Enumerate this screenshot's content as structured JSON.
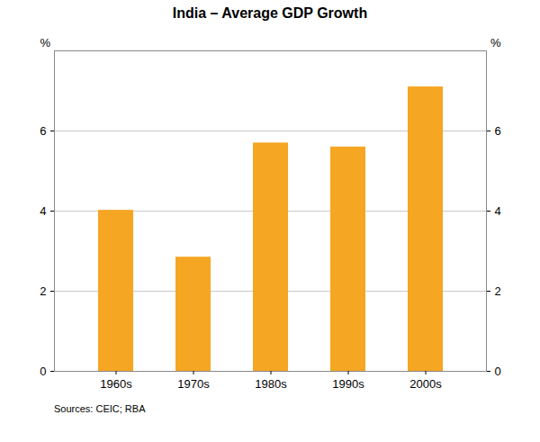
{
  "chart_data": {
    "type": "bar",
    "title": "India – Average GDP Growth",
    "categories": [
      "1960s",
      "1970s",
      "1980s",
      "1990s",
      "2000s"
    ],
    "values": [
      4.02,
      2.85,
      5.7,
      5.6,
      7.1
    ],
    "color": "#F5A623",
    "ylim": [
      0,
      8
    ],
    "yticks": [
      0,
      2,
      4,
      6
    ],
    "ylabel": "%",
    "y2lim": [
      0,
      8
    ],
    "y2ticks": [
      0,
      2,
      4,
      6
    ],
    "y2label": "%",
    "grid": true,
    "source": "Sources: CEIC; RBA"
  }
}
